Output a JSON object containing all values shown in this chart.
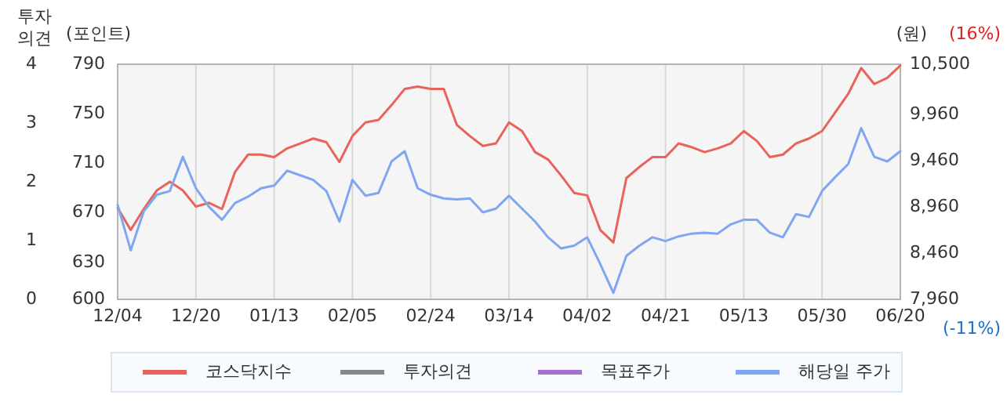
{
  "chart_data": {
    "type": "line",
    "ylabel": "(포인트)",
    "y2label": "(원)",
    "y3label": "투자의견",
    "categories": [
      "12/04",
      null,
      null,
      null,
      null,
      null,
      "12/20",
      null,
      null,
      null,
      null,
      null,
      "01/13",
      null,
      null,
      null,
      null,
      null,
      "02/05",
      null,
      null,
      null,
      null,
      null,
      "02/24",
      null,
      null,
      null,
      null,
      null,
      "03/14",
      null,
      null,
      null,
      null,
      null,
      "04/02",
      null,
      null,
      null,
      null,
      null,
      "04/21",
      null,
      null,
      null,
      null,
      null,
      "05/13",
      null,
      null,
      null,
      null,
      null,
      "05/30",
      null,
      null,
      null,
      null,
      null,
      "06/20"
    ],
    "series": [
      {
        "name": "코스닥지수",
        "color": "#e8635a",
        "axis": "y",
        "values": [
          674,
          656,
          673,
          688,
          695,
          688,
          675,
          678,
          673,
          703,
          717,
          717,
          715,
          722,
          726,
          730,
          727,
          711,
          732,
          743,
          745,
          757,
          770,
          772,
          770,
          770,
          741,
          732,
          724,
          726,
          743,
          736,
          719,
          713,
          700,
          686,
          684,
          656,
          646,
          698,
          707,
          715,
          715,
          726,
          723,
          719,
          722,
          726,
          736,
          728,
          715,
          717,
          726,
          730,
          736,
          751,
          766,
          787,
          774,
          779,
          789
        ]
      },
      {
        "name": "투자의견",
        "color": "#888888",
        "axis": "y3",
        "values": [
          null,
          null,
          null,
          null,
          null,
          null,
          null,
          null,
          null,
          null,
          null,
          null,
          null,
          null,
          null,
          null,
          null,
          null,
          null,
          null,
          null,
          null,
          null,
          null,
          null,
          null,
          null,
          null,
          null,
          null,
          null,
          null,
          null,
          null,
          null,
          null,
          null,
          null,
          null,
          null,
          null,
          null,
          null,
          null,
          null,
          null,
          null,
          null,
          null,
          null,
          null,
          null,
          null,
          null,
          null,
          null,
          null,
          null,
          null,
          null,
          null
        ]
      },
      {
        "name": "목표주가",
        "color": "#a66fd0",
        "axis": "y2",
        "values": [
          null,
          null,
          null,
          null,
          null,
          null,
          null,
          null,
          null,
          null,
          null,
          null,
          null,
          null,
          null,
          null,
          null,
          null,
          null,
          null,
          null,
          null,
          null,
          null,
          null,
          null,
          null,
          null,
          null,
          null,
          null,
          null,
          null,
          null,
          null,
          null,
          null,
          null,
          null,
          null,
          null,
          null,
          null,
          null,
          null,
          null,
          null,
          null,
          null,
          null,
          null,
          null,
          null,
          null,
          null,
          null,
          null,
          null,
          null,
          null,
          null
        ]
      },
      {
        "name": "해당일 주가",
        "color": "#7fa6f0",
        "axis": "y2",
        "values": [
          8980,
          8490,
          8910,
          9090,
          9130,
          9500,
          9160,
          8960,
          8820,
          9000,
          9070,
          9160,
          9190,
          9350,
          9300,
          9250,
          9130,
          8800,
          9250,
          9080,
          9110,
          9450,
          9560,
          9160,
          9090,
          9050,
          9040,
          9050,
          8900,
          8940,
          9080,
          8940,
          8800,
          8630,
          8510,
          8540,
          8630,
          8340,
          8030,
          8430,
          8540,
          8630,
          8590,
          8640,
          8670,
          8680,
          8670,
          8770,
          8820,
          8820,
          8680,
          8630,
          8880,
          8850,
          9130,
          9280,
          9420,
          9810,
          9500,
          9450,
          9560
        ]
      }
    ],
    "ylim": [
      600,
      790
    ],
    "yticks": [
      600,
      630,
      670,
      710,
      750,
      790
    ],
    "y2lim": [
      7960,
      10500
    ],
    "y2ticks": [
      {
        "value": 7960,
        "label": "7,960"
      },
      {
        "value": 8460,
        "label": "8,460"
      },
      {
        "value": 8960,
        "label": "8,960"
      },
      {
        "value": 9460,
        "label": "9,460"
      },
      {
        "value": 9960,
        "label": "9,960"
      },
      {
        "value": 10500,
        "label": "10,500"
      }
    ],
    "y3lim": [
      0,
      4
    ],
    "y3ticks": [
      0,
      1,
      2,
      3,
      4
    ],
    "annotations": [
      "(16%)",
      "(-11%)"
    ],
    "grid": "x",
    "legend": "bottom"
  }
}
